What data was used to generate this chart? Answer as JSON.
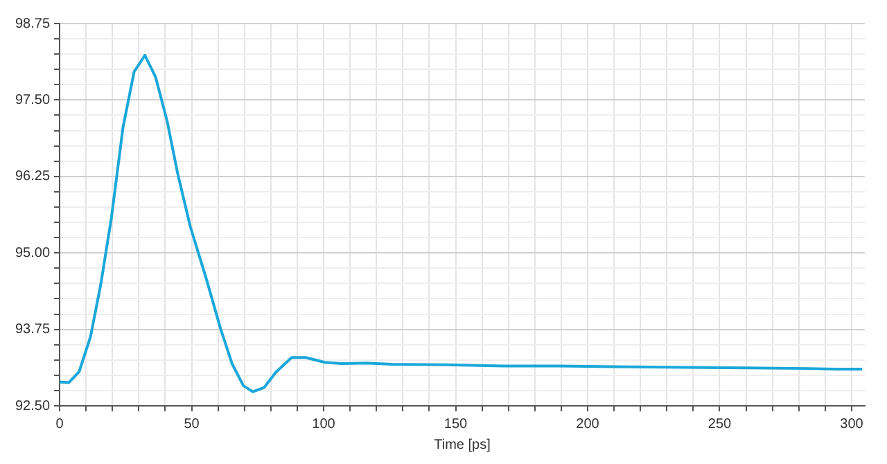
{
  "chart_data": {
    "type": "line",
    "xlabel": "Time [ps]",
    "xlim": [
      0,
      305
    ],
    "xticks": [
      0,
      {
        "value": 10,
        "label": null
      },
      {
        "value": 20,
        "label": null
      },
      {
        "value": 30,
        "label": null
      },
      {
        "value": 40,
        "label": null
      },
      50,
      {
        "value": 60,
        "label": null
      },
      {
        "value": 70,
        "label": null
      },
      {
        "value": 80,
        "label": null
      },
      {
        "value": 90,
        "label": null
      },
      100,
      {
        "value": 110,
        "label": null
      },
      {
        "value": 120,
        "label": null
      },
      {
        "value": 130,
        "label": null
      },
      {
        "value": 140,
        "label": null
      },
      150,
      {
        "value": 160,
        "label": null
      },
      {
        "value": 170,
        "label": null
      },
      {
        "value": 180,
        "label": null
      },
      {
        "value": 190,
        "label": null
      },
      200,
      {
        "value": 210,
        "label": null
      },
      {
        "value": 220,
        "label": null
      },
      {
        "value": 230,
        "label": null
      },
      {
        "value": 240,
        "label": null
      },
      250,
      {
        "value": 260,
        "label": null
      },
      {
        "value": 270,
        "label": null
      },
      {
        "value": 280,
        "label": null
      },
      {
        "value": 290,
        "label": null
      },
      300
    ],
    "ylim": [
      92.5,
      98.75
    ],
    "yticks": [
      {
        "value": 92.5,
        "label": "92.50"
      },
      {
        "value": 92.75,
        "label": null
      },
      {
        "value": 93,
        "label": null
      },
      {
        "value": 93.25,
        "label": null
      },
      {
        "value": 93.5,
        "label": null
      },
      {
        "value": 93.75,
        "label": "93.75"
      },
      {
        "value": 94,
        "label": null
      },
      {
        "value": 94.25,
        "label": null
      },
      {
        "value": 94.5,
        "label": null
      },
      {
        "value": 94.75,
        "label": null
      },
      {
        "value": 95,
        "label": "95.00"
      },
      {
        "value": 95.25,
        "label": null
      },
      {
        "value": 95.5,
        "label": null
      },
      {
        "value": 95.75,
        "label": null
      },
      {
        "value": 96,
        "label": null
      },
      {
        "value": 96.25,
        "label": "96.25"
      },
      {
        "value": 96.5,
        "label": null
      },
      {
        "value": 96.75,
        "label": null
      },
      {
        "value": 97,
        "label": null
      },
      {
        "value": 97.25,
        "label": null
      },
      {
        "value": 97.5,
        "label": "97.50"
      },
      {
        "value": 97.75,
        "label": null
      },
      {
        "value": 98,
        "label": null
      },
      {
        "value": 98.25,
        "label": null
      },
      {
        "value": 98.5,
        "label": null
      },
      {
        "value": 98.75,
        "label": "98.75"
      }
    ],
    "grid": true,
    "legend": false,
    "marker": "none",
    "line_style": "solid",
    "series": [
      {
        "color": "#1ba7d9",
        "x": [
          0,
          3.5,
          7.4,
          11.7,
          15.6,
          19.6,
          24,
          28.2,
          32.3,
          36.3,
          40.7,
          44.7,
          49.5,
          55.6,
          60.9,
          65.3,
          69.6,
          73.2,
          77.5,
          81.9,
          87.9,
          93.2,
          100.5,
          106.8,
          116,
          125.8,
          146.8,
          168,
          189,
          210,
          231,
          260.5,
          283.7,
          294.2,
          304
        ],
        "values": [
          92.89,
          92.88,
          93.06,
          93.63,
          94.49,
          95.57,
          97.05,
          97.96,
          98.23,
          97.88,
          97.16,
          96.3,
          95.43,
          94.57,
          93.77,
          93.19,
          92.83,
          92.73,
          92.8,
          93.05,
          93.29,
          93.29,
          93.21,
          93.19,
          93.2,
          93.18,
          93.17,
          93.15,
          93.15,
          93.14,
          93.13,
          93.12,
          93.11,
          93.1,
          93.1
        ]
      }
    ]
  }
}
